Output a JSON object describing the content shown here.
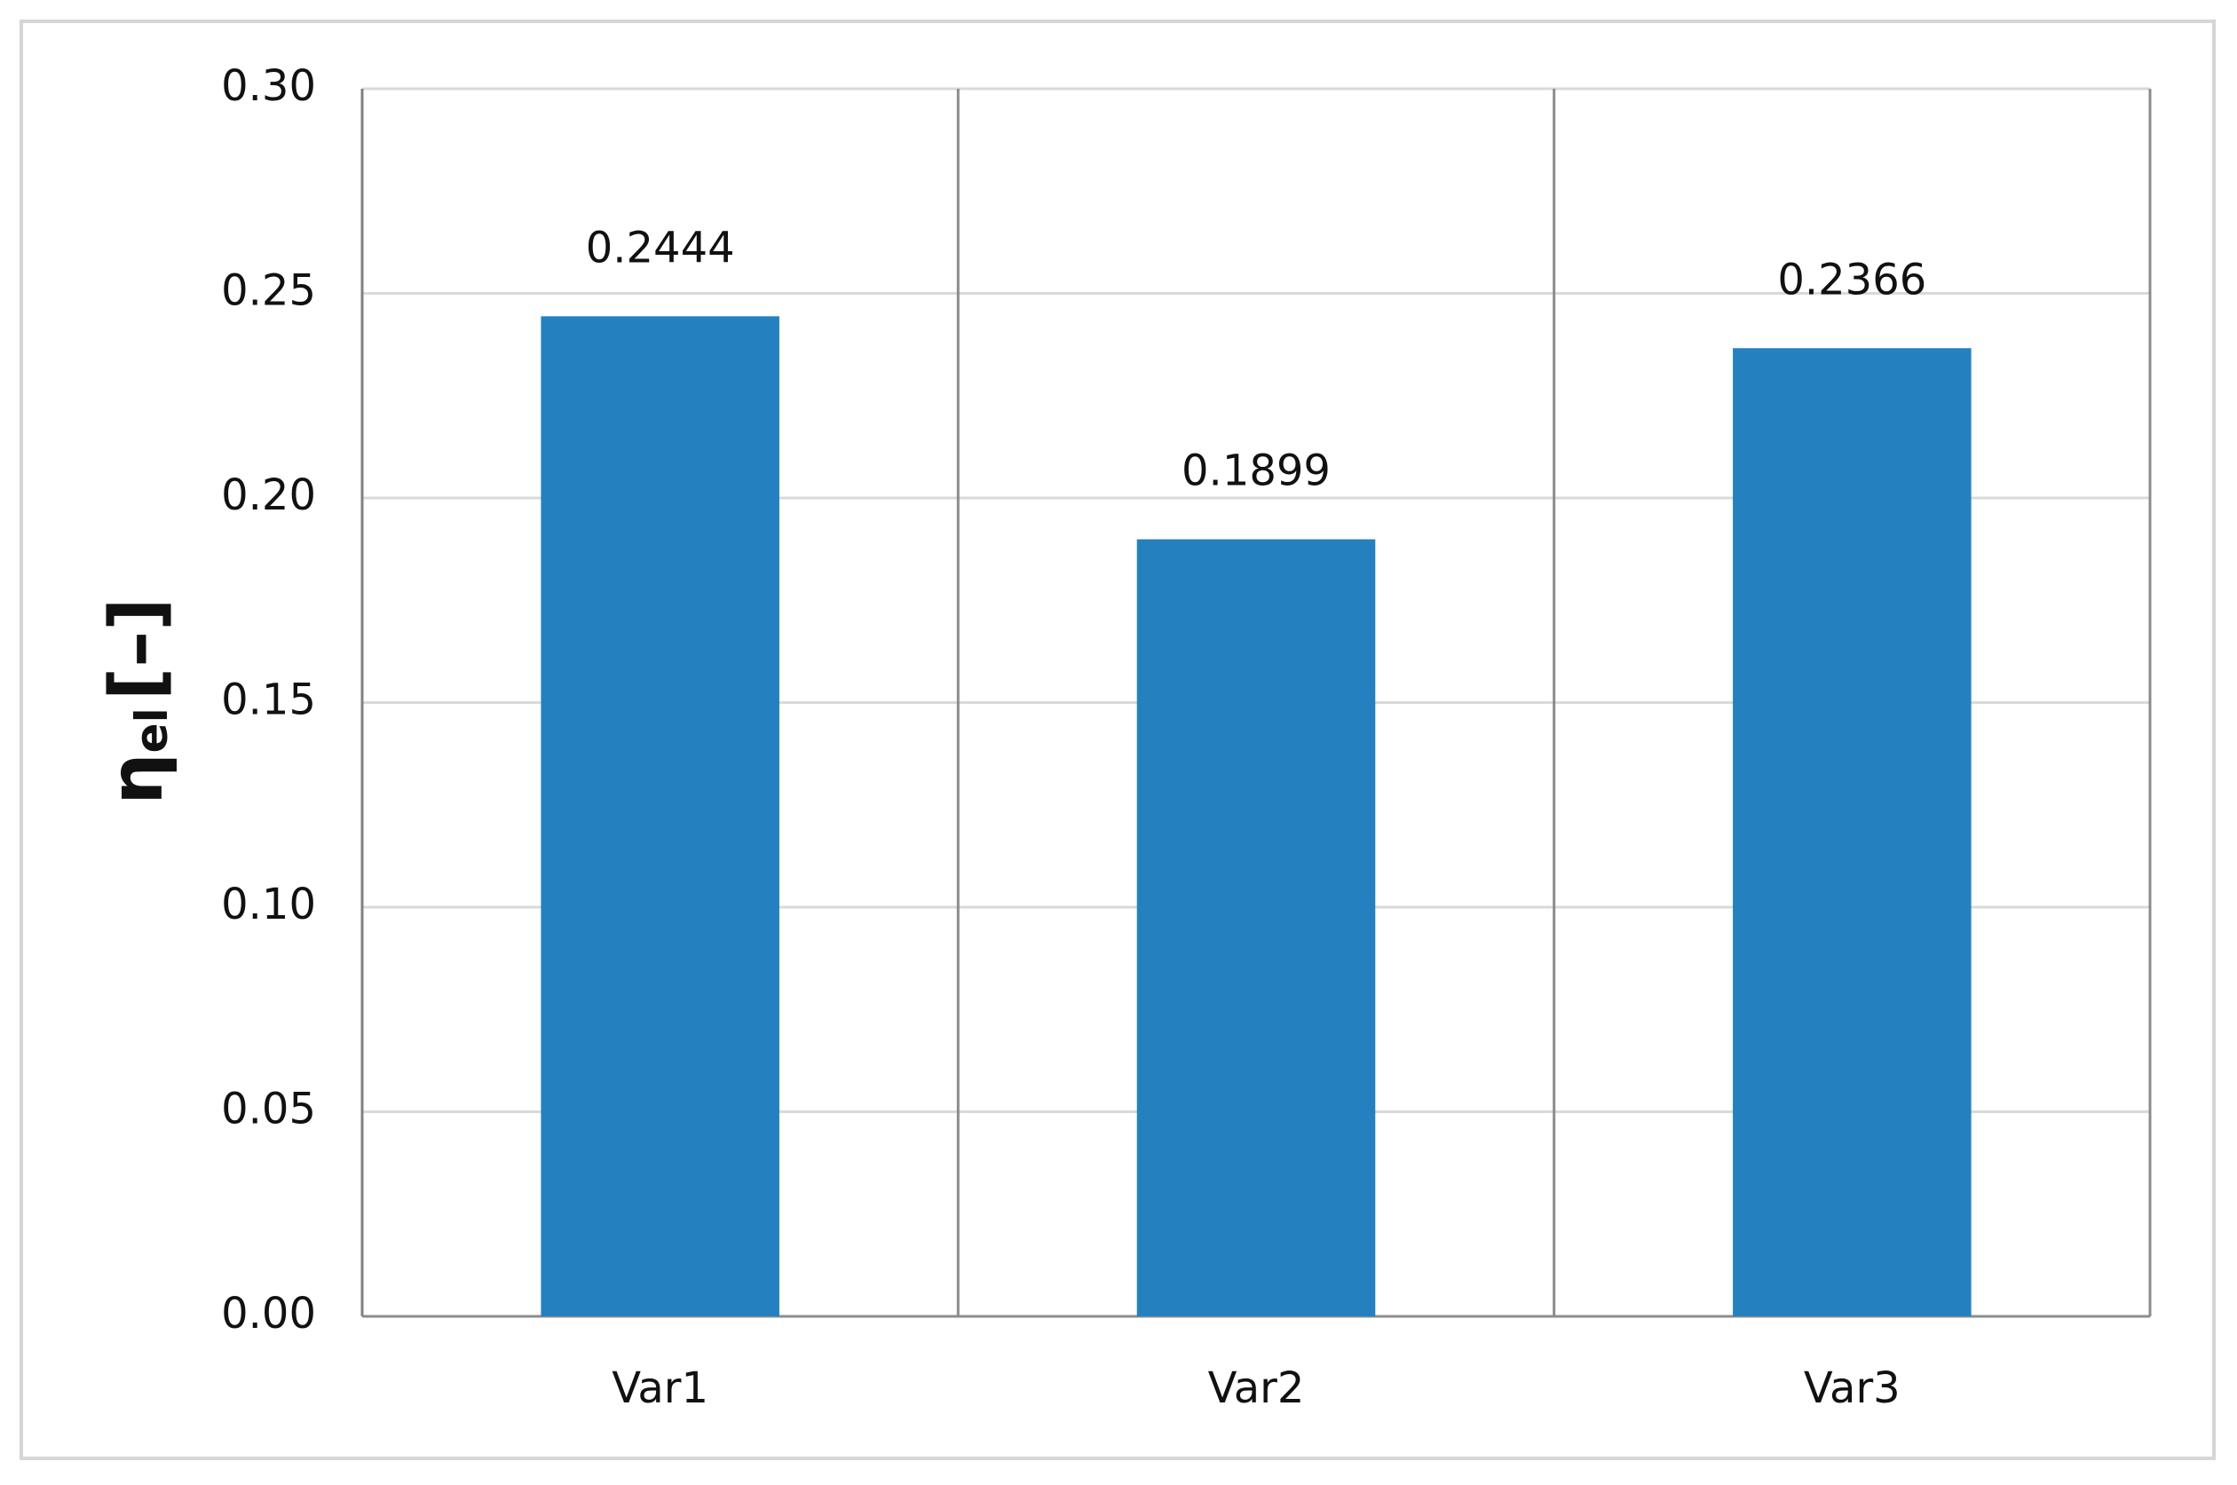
{
  "chart_data": {
    "type": "bar",
    "ylabel": [
      "η",
      "el",
      "[–]"
    ],
    "categories": [
      "Var1",
      "Var2",
      "Var3"
    ],
    "values": [
      0.2444,
      0.1899,
      0.2366
    ],
    "color": "#2580bf",
    "ylim": [
      0,
      0.3
    ],
    "yticks": [
      {
        "value": 0,
        "label": "0.00"
      },
      {
        "value": 0.05,
        "label": "0.05"
      },
      {
        "value": 0.1,
        "label": "0.10"
      },
      {
        "value": 0.15,
        "label": "0.15"
      },
      {
        "value": 0.2,
        "label": "0.20"
      },
      {
        "value": 0.25,
        "label": "0.25"
      },
      {
        "value": 0.3,
        "label": "0.30"
      }
    ],
    "grid": true,
    "category_dividers": true
  }
}
